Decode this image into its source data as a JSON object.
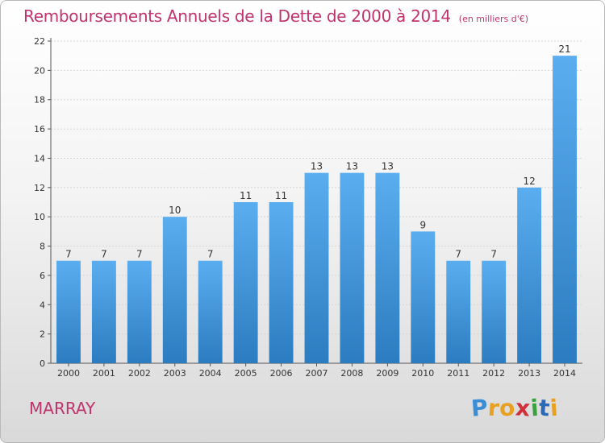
{
  "chart_data": {
    "type": "bar",
    "title": "Remboursements Annuels de la Dette de 2000 à 2014",
    "unit": "(en milliers d'€)",
    "categories": [
      "2000",
      "2001",
      "2002",
      "2003",
      "2004",
      "2005",
      "2006",
      "2007",
      "2008",
      "2009",
      "2010",
      "2011",
      "2012",
      "2013",
      "2014"
    ],
    "values": [
      7,
      7,
      7,
      10,
      7,
      11,
      11,
      13,
      13,
      13,
      9,
      7,
      7,
      12,
      21
    ],
    "ylim": [
      0,
      22
    ],
    "yticks": [
      0,
      2,
      4,
      6,
      8,
      10,
      12,
      14,
      16,
      18,
      20,
      22
    ],
    "grid": true,
    "bar_color_top": "#5aaef0",
    "bar_color_bottom": "#2b7cc0"
  },
  "footer": {
    "commune": "MARRAY",
    "brand_letters": [
      "P",
      "r",
      "o",
      "x",
      "i",
      "t",
      "i"
    ],
    "brand_colors": [
      "#3a8ed8",
      "#e8a020",
      "#e8a020",
      "#d0303a",
      "#3aa040",
      "#2a6ab8",
      "#e8a020"
    ]
  }
}
